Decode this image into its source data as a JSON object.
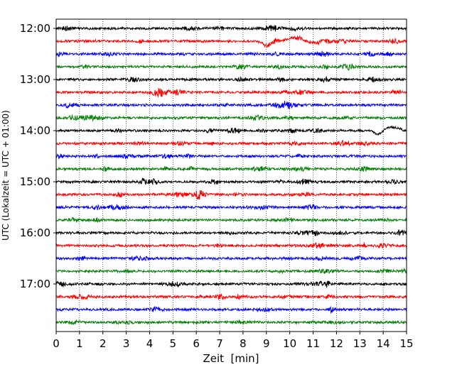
{
  "chart_data": {
    "type": "line",
    "title": "",
    "xlabel": "Zeit  [min]",
    "ylabel": "UTC (Lokalzeit = UTC + 01:00)",
    "xlim": [
      0,
      15
    ],
    "x_ticks": [
      "0",
      "1",
      "2",
      "3",
      "4",
      "5",
      "6",
      "7",
      "8",
      "9",
      "10",
      "11",
      "12",
      "13",
      "14",
      "15"
    ],
    "y_tick_labels": [
      "12:00",
      "13:00",
      "14:00",
      "15:00",
      "16:00",
      "17:00"
    ],
    "grid": "vertical dotted",
    "traces_per_hour": 4,
    "trace_minutes": 15,
    "trace_colors": [
      "#000000",
      "#ff0000",
      "#0000ff",
      "#008000"
    ],
    "traces": [
      {
        "start": "12:00",
        "color": "#000000"
      },
      {
        "start": "12:15",
        "color": "#ff0000",
        "events": [
          {
            "minute": 9.0,
            "shape": "dip"
          },
          {
            "minute": 10.2,
            "shape": "bump"
          }
        ]
      },
      {
        "start": "12:30",
        "color": "#0000ff"
      },
      {
        "start": "12:45",
        "color": "#008000"
      },
      {
        "start": "13:00",
        "color": "#000000"
      },
      {
        "start": "13:15",
        "color": "#ff0000"
      },
      {
        "start": "13:30",
        "color": "#0000ff"
      },
      {
        "start": "13:45",
        "color": "#008000"
      },
      {
        "start": "14:00",
        "color": "#000000",
        "events": [
          {
            "minute": 13.8,
            "shape": "dip"
          },
          {
            "minute": 14.4,
            "shape": "bump"
          }
        ]
      },
      {
        "start": "14:15",
        "color": "#ff0000"
      },
      {
        "start": "14:30",
        "color": "#0000ff"
      },
      {
        "start": "14:45",
        "color": "#008000"
      },
      {
        "start": "15:00",
        "color": "#000000"
      },
      {
        "start": "15:15",
        "color": "#ff0000"
      },
      {
        "start": "15:30",
        "color": "#0000ff"
      },
      {
        "start": "15:45",
        "color": "#008000"
      },
      {
        "start": "16:00",
        "color": "#000000"
      },
      {
        "start": "16:15",
        "color": "#ff0000"
      },
      {
        "start": "16:30",
        "color": "#0000ff"
      },
      {
        "start": "16:45",
        "color": "#008000"
      },
      {
        "start": "17:00",
        "color": "#000000"
      },
      {
        "start": "17:15",
        "color": "#ff0000"
      },
      {
        "start": "17:30",
        "color": "#0000ff"
      },
      {
        "start": "17:45",
        "color": "#008000"
      }
    ]
  }
}
